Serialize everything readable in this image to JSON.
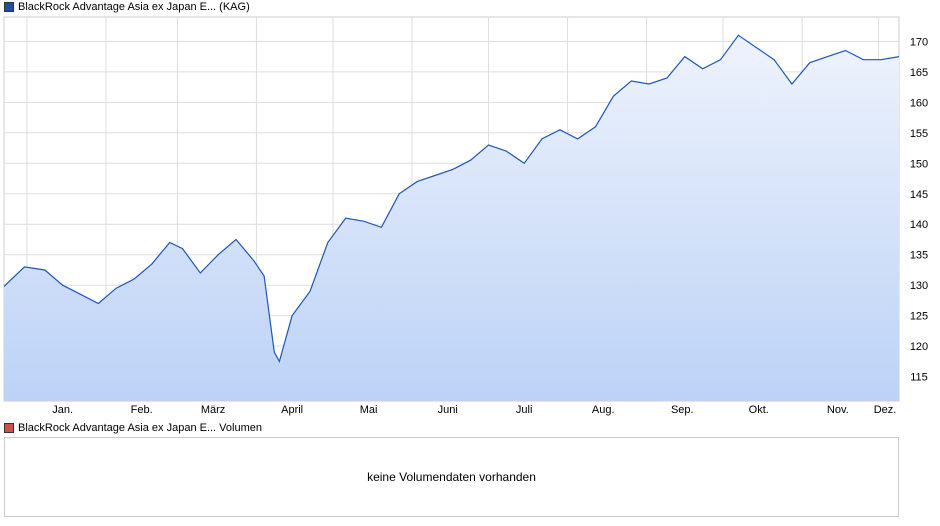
{
  "price_legend": {
    "label": "BlackRock Advantage Asia ex Japan E... (KAG)",
    "color": "#1f4ea6"
  },
  "volume_legend": {
    "label": "BlackRock Advantage Asia ex Japan E... Volumen",
    "color": "#d05050"
  },
  "volume_panel": {
    "message": "keine Volumendaten vorhanden"
  },
  "colors": {
    "line": "#1f56b8",
    "fill_top": "#eef3fd",
    "fill_bottom": "#bcd2f6",
    "grid": "#dddddd"
  },
  "chart_data": {
    "type": "area",
    "x_tick_labels": [
      "Jan.",
      "Feb.",
      "März",
      "April",
      "Mai",
      "Juni",
      "Juli",
      "Aug.",
      "Sep.",
      "Okt.",
      "Nov.",
      "Dez."
    ],
    "y_ticks": [
      115,
      120,
      125,
      130,
      135,
      140,
      145,
      150,
      155,
      160,
      165,
      170
    ],
    "ylim": [
      111,
      174
    ],
    "grid": true,
    "y_axis_side": "right",
    "series": [
      {
        "x": [
          "2024-12-23",
          "2024-12-31",
          "2025-01-08",
          "2025-01-15",
          "2025-01-22",
          "2025-01-29",
          "2025-02-05",
          "2025-02-12",
          "2025-02-19",
          "2025-02-26",
          "2025-03-03",
          "2025-03-10",
          "2025-03-17",
          "2025-03-24",
          "2025-03-31",
          "2025-04-04",
          "2025-04-08",
          "2025-04-10",
          "2025-04-15",
          "2025-04-22",
          "2025-04-29",
          "2025-05-06",
          "2025-05-13",
          "2025-05-20",
          "2025-05-27",
          "2025-06-03",
          "2025-06-10",
          "2025-06-17",
          "2025-06-24",
          "2025-07-01",
          "2025-07-08",
          "2025-07-15",
          "2025-07-22",
          "2025-07-29",
          "2025-08-05",
          "2025-08-12",
          "2025-08-19",
          "2025-08-26",
          "2025-09-02",
          "2025-09-09",
          "2025-09-16",
          "2025-09-23",
          "2025-09-30",
          "2025-10-07",
          "2025-10-14",
          "2025-10-21",
          "2025-10-28",
          "2025-11-04",
          "2025-11-11",
          "2025-11-18",
          "2025-11-25",
          "2025-12-02",
          "2025-12-09"
        ],
        "y": [
          129.8,
          133.0,
          132.5,
          130.0,
          128.5,
          127.0,
          129.5,
          131.0,
          133.5,
          137.0,
          136.0,
          132.0,
          135.0,
          137.5,
          134.0,
          131.5,
          119.0,
          117.5,
          125.0,
          129.0,
          137.0,
          141.0,
          140.5,
          139.5,
          145.0,
          147.0,
          148.0,
          149.0,
          150.5,
          153.0,
          152.0,
          150.0,
          154.0,
          155.5,
          154.0,
          156.0,
          161.0,
          163.5,
          163.0,
          164.0,
          167.5,
          165.5,
          167.0,
          171.0,
          169.0,
          167.0,
          163.0,
          166.5,
          167.5,
          168.5,
          167.0,
          167.0,
          167.5
        ]
      }
    ]
  }
}
